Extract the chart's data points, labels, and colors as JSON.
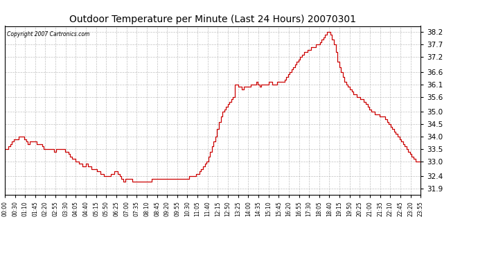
{
  "title": "Outdoor Temperature per Minute (Last 24 Hours) 20070301",
  "copyright_text": "Copyright 2007 Cartronics.com",
  "line_color": "#cc0000",
  "background_color": "#ffffff",
  "plot_bg_color": "#ffffff",
  "grid_color": "#b0b0b0",
  "yticks": [
    31.9,
    32.4,
    33.0,
    33.5,
    34.0,
    34.5,
    35.0,
    35.6,
    36.1,
    36.6,
    37.2,
    37.7,
    38.2
  ],
  "ylim": [
    31.65,
    38.45
  ],
  "xtick_labels": [
    "00:00",
    "00:30",
    "01:10",
    "01:45",
    "02:20",
    "02:55",
    "03:30",
    "04:05",
    "04:40",
    "05:15",
    "05:50",
    "06:25",
    "07:00",
    "07:35",
    "08:10",
    "08:45",
    "09:20",
    "09:55",
    "10:30",
    "11:05",
    "11:40",
    "12:15",
    "12:50",
    "13:25",
    "14:00",
    "14:35",
    "15:10",
    "15:45",
    "16:20",
    "16:55",
    "17:30",
    "18:05",
    "18:40",
    "19:15",
    "19:50",
    "20:25",
    "21:00",
    "21:35",
    "22:10",
    "22:45",
    "23:20",
    "23:55"
  ],
  "data_points": [
    33.5,
    33.5,
    33.6,
    33.7,
    33.8,
    33.9,
    33.9,
    33.9,
    34.0,
    34.0,
    34.0,
    33.9,
    33.8,
    33.7,
    33.8,
    33.8,
    33.8,
    33.8,
    33.7,
    33.7,
    33.7,
    33.6,
    33.5,
    33.5,
    33.5,
    33.5,
    33.5,
    33.5,
    33.4,
    33.5,
    33.5,
    33.5,
    33.5,
    33.5,
    33.4,
    33.4,
    33.3,
    33.2,
    33.1,
    33.1,
    33.0,
    33.0,
    32.9,
    32.9,
    32.8,
    32.8,
    32.9,
    32.8,
    32.8,
    32.7,
    32.7,
    32.7,
    32.6,
    32.6,
    32.5,
    32.5,
    32.4,
    32.4,
    32.4,
    32.4,
    32.5,
    32.5,
    32.6,
    32.6,
    32.5,
    32.4,
    32.3,
    32.2,
    32.3,
    32.3,
    32.3,
    32.3,
    32.2,
    32.2,
    32.2,
    32.2,
    32.2,
    32.2,
    32.2,
    32.2,
    32.2,
    32.2,
    32.2,
    32.3,
    32.3,
    32.3,
    32.3,
    32.3,
    32.3,
    32.3,
    32.3,
    32.3,
    32.3,
    32.3,
    32.3,
    32.3,
    32.3,
    32.3,
    32.3,
    32.3,
    32.3,
    32.3,
    32.3,
    32.3,
    32.4,
    32.4,
    32.4,
    32.4,
    32.5,
    32.5,
    32.6,
    32.7,
    32.8,
    32.9,
    33.0,
    33.2,
    33.4,
    33.6,
    33.8,
    34.0,
    34.3,
    34.6,
    34.8,
    35.0,
    35.1,
    35.2,
    35.3,
    35.4,
    35.5,
    35.6,
    36.1,
    36.1,
    36.0,
    36.0,
    35.9,
    36.0,
    36.0,
    36.0,
    36.0,
    36.1,
    36.1,
    36.1,
    36.2,
    36.1,
    36.0,
    36.1,
    36.1,
    36.1,
    36.1,
    36.2,
    36.2,
    36.1,
    36.1,
    36.1,
    36.2,
    36.2,
    36.2,
    36.2,
    36.3,
    36.4,
    36.5,
    36.6,
    36.7,
    36.8,
    36.9,
    37.0,
    37.1,
    37.2,
    37.3,
    37.4,
    37.4,
    37.5,
    37.5,
    37.6,
    37.6,
    37.6,
    37.7,
    37.7,
    37.8,
    37.9,
    38.0,
    38.1,
    38.2,
    38.2,
    38.1,
    37.9,
    37.7,
    37.4,
    37.0,
    36.8,
    36.6,
    36.4,
    36.2,
    36.1,
    36.0,
    35.9,
    35.8,
    35.7,
    35.7,
    35.6,
    35.6,
    35.5,
    35.5,
    35.4,
    35.3,
    35.2,
    35.1,
    35.0,
    35.0,
    34.9,
    34.9,
    34.9,
    34.8,
    34.8,
    34.8,
    34.7,
    34.6,
    34.5,
    34.4,
    34.3,
    34.2,
    34.1,
    34.0,
    33.9,
    33.8,
    33.7,
    33.6,
    33.5,
    33.4,
    33.3,
    33.2,
    33.1,
    33.0,
    33.0,
    33.0,
    33.0
  ]
}
